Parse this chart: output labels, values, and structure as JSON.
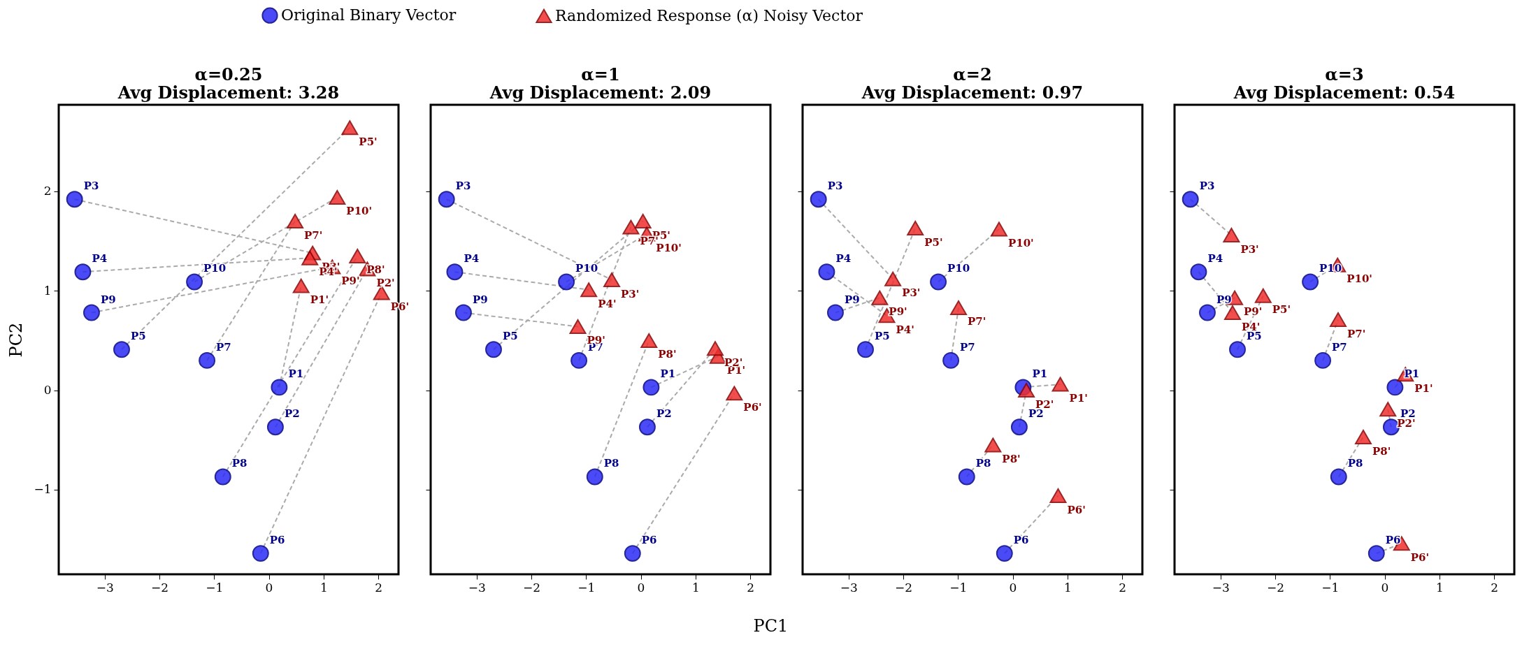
{
  "chart_data": [
    {
      "type": "scatter",
      "title": "α=0.25",
      "subtitle": "Avg Displacement: 3.28",
      "ylabel": "PC2",
      "xlim": [
        -3.84,
        2.37
      ],
      "ylim": [
        -1.85,
        2.87
      ],
      "xticks": [
        -3,
        -2,
        -1,
        0,
        1,
        2
      ],
      "yticks": [
        -1,
        0,
        1,
        2
      ],
      "legend": "top",
      "line_style": "dashed",
      "grid": false,
      "series": [
        {
          "name": "Original Binary Vector",
          "color": "#2b2bf5",
          "marker": "circle",
          "x": [
            0.19,
            0.12,
            -3.55,
            -3.4,
            -2.69,
            -0.15,
            -1.13,
            -0.84,
            -3.24,
            -1.36
          ],
          "values": [
            0.03,
            -0.37,
            1.92,
            1.19,
            0.41,
            -1.64,
            0.3,
            -0.87,
            0.78,
            1.09
          ],
          "value_labels": [
            "P1",
            "P2",
            "P3",
            "P4",
            "P5",
            "P6",
            "P7",
            "P8",
            "P9",
            "P10"
          ]
        },
        {
          "name": "Randomized Response (α) Noisy Vector",
          "color": "#f03030",
          "marker": "triangle",
          "x": [
            0.59,
            1.8,
            0.8,
            0.75,
            1.48,
            2.06,
            0.48,
            1.62,
            1.16,
            1.25
          ],
          "values": [
            1.05,
            1.22,
            1.38,
            1.33,
            2.64,
            0.98,
            1.7,
            1.35,
            1.24,
            1.94
          ],
          "value_labels": [
            "P1'",
            "P2'",
            "P3'",
            "P4'",
            "P5'",
            "P6'",
            "P7'",
            "P8'",
            "P9'",
            "P10'"
          ]
        }
      ]
    },
    {
      "type": "scatter",
      "title": "α=1",
      "subtitle": "Avg Displacement: 2.09",
      "xlabel": "PC1",
      "xlim": [
        -3.84,
        2.37
      ],
      "ylim": [
        -1.85,
        2.87
      ],
      "xticks": [
        -3,
        -2,
        -1,
        0,
        1,
        2
      ],
      "yticks": [
        -1,
        0,
        1,
        2
      ],
      "tick_labels": "x",
      "line_style": "dashed",
      "grid": false,
      "series": [
        {
          "color": "#2b2bf5",
          "marker": "circle",
          "x": [
            0.19,
            0.12,
            -3.55,
            -3.4,
            -2.69,
            -0.15,
            -1.13,
            -0.84,
            -3.24,
            -1.36
          ],
          "values": [
            0.03,
            -0.37,
            1.92,
            1.19,
            0.41,
            -1.64,
            0.3,
            -0.87,
            0.78,
            1.09
          ],
          "value_labels": [
            "P1",
            "P2",
            "P3",
            "P4",
            "P5",
            "P6",
            "P7",
            "P8",
            "P9",
            "P10"
          ]
        },
        {
          "color": "#f03030",
          "marker": "triangle",
          "x": [
            1.41,
            1.36,
            -0.53,
            -0.95,
            0.04,
            1.71,
            -0.18,
            0.15,
            -1.15,
            0.11
          ],
          "values": [
            0.34,
            0.42,
            1.11,
            1.01,
            1.7,
            -0.03,
            1.64,
            0.5,
            0.64,
            1.57
          ],
          "value_labels": [
            "P1'",
            "P2'",
            "P3'",
            "P4'",
            "P5'",
            "P6'",
            "P7'",
            "P8'",
            "P9'",
            "P10'"
          ]
        }
      ]
    },
    {
      "type": "scatter",
      "title": "α=2",
      "subtitle": "Avg Displacement: 0.97",
      "xlim": [
        -3.84,
        2.37
      ],
      "ylim": [
        -1.85,
        2.87
      ],
      "xticks": [
        -3,
        -2,
        -1,
        0,
        1,
        2
      ],
      "yticks": [
        -1,
        0,
        1,
        2
      ],
      "tick_labels": "x",
      "line_style": "dashed",
      "grid": false,
      "series": [
        {
          "color": "#2b2bf5",
          "marker": "circle",
          "x": [
            0.19,
            0.12,
            -3.55,
            -3.4,
            -2.69,
            -0.15,
            -1.13,
            -0.84,
            -3.24,
            -1.36
          ],
          "values": [
            0.03,
            -0.37,
            1.92,
            1.19,
            0.41,
            -1.64,
            0.3,
            -0.87,
            0.78,
            1.09
          ],
          "value_labels": [
            "P1",
            "P2",
            "P3",
            "P4",
            "P5",
            "P6",
            "P7",
            "P8",
            "P9",
            "P10"
          ]
        },
        {
          "color": "#f03030",
          "marker": "triangle",
          "x": [
            0.87,
            0.25,
            -2.19,
            -2.3,
            -1.78,
            0.83,
            -0.99,
            -0.36,
            -2.43,
            -0.25
          ],
          "values": [
            0.06,
            0.0,
            1.12,
            0.75,
            1.63,
            -1.06,
            0.83,
            -0.55,
            0.93,
            1.62
          ],
          "value_labels": [
            "P1'",
            "P2'",
            "P3'",
            "P4'",
            "P5'",
            "P6'",
            "P7'",
            "P8'",
            "P9'",
            "P10'"
          ]
        }
      ]
    },
    {
      "type": "scatter",
      "title": "α=3",
      "subtitle": "Avg Displacement: 0.54",
      "xlim": [
        -3.84,
        2.37
      ],
      "ylim": [
        -1.85,
        2.87
      ],
      "xticks": [
        -3,
        -2,
        -1,
        0,
        1,
        2
      ],
      "yticks": [
        -1,
        0,
        1,
        2
      ],
      "tick_labels": "x",
      "line_style": "dashed",
      "grid": false,
      "series": [
        {
          "color": "#2b2bf5",
          "marker": "circle",
          "x": [
            0.19,
            0.12,
            -3.55,
            -3.4,
            -2.69,
            -0.15,
            -1.13,
            -0.84,
            -3.24,
            -1.36
          ],
          "values": [
            0.03,
            -0.37,
            1.92,
            1.19,
            0.41,
            -1.64,
            0.3,
            -0.87,
            0.78,
            1.09
          ],
          "value_labels": [
            "P1",
            "P2",
            "P3",
            "P4",
            "P5",
            "P6",
            "P7",
            "P8",
            "P9",
            "P10"
          ]
        },
        {
          "color": "#f03030",
          "marker": "triangle",
          "x": [
            0.38,
            0.06,
            -2.8,
            -2.78,
            -2.22,
            0.31,
            -0.85,
            -0.39,
            -2.74,
            -0.86
          ],
          "values": [
            0.16,
            -0.19,
            1.56,
            0.78,
            0.95,
            -1.54,
            0.71,
            -0.47,
            0.93,
            1.26
          ],
          "value_labels": [
            "P1'",
            "P2'",
            "P3'",
            "P4'",
            "P5'",
            "P6'",
            "P7'",
            "P8'",
            "P9'",
            "P10'"
          ]
        }
      ]
    }
  ]
}
